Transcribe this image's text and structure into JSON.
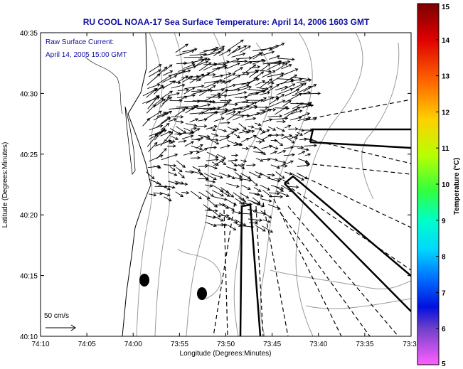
{
  "chart_data": {
    "type": "vector-field",
    "title": "RU COOL  NOAA-17  Sea Surface Temperature:  April 14, 2006 1603 GMT",
    "xlabel": "Longitude (Degrees:Minutes)",
    "ylabel": "Latitude (Degrees:Minutes)",
    "x_ticks": [
      "74:10",
      "74:05",
      "74:00",
      "73:55",
      "73:50",
      "73:45",
      "73:40",
      "73:35",
      "73:3"
    ],
    "y_ticks": [
      "40:35",
      "40:30",
      "40:25",
      "40:20",
      "40:15",
      "40:10"
    ],
    "xlim_min": [
      -74.1667,
      -73.5
    ],
    "ylim_min": [
      40.1667,
      40.5833
    ],
    "annotation_lines": [
      "Raw Surface Current:",
      "April 14, 2005 15:00 GMT"
    ],
    "scale_label": "50 cm/s",
    "colorbar": {
      "label": "Temperature (°C)",
      "ticks": [
        "15",
        "14",
        "13",
        "12",
        "11",
        "10",
        "9",
        "8",
        "7",
        "6",
        "5"
      ],
      "range": [
        5,
        15
      ]
    },
    "colors": {
      "title": "#1010a0",
      "land_fill": "#ffffff",
      "contour": "#9a9a9a",
      "vector": "#000000"
    }
  }
}
